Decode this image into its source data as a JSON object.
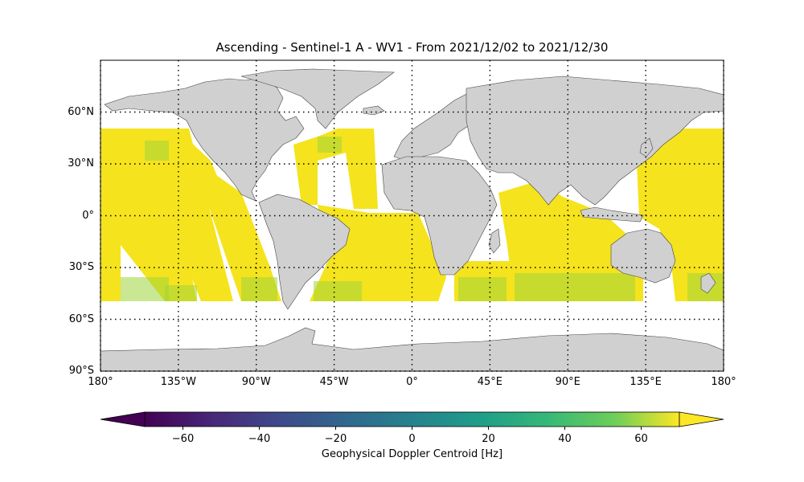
{
  "title": "Ascending - Sentinel-1 A - WV1 - From 2021/12/02 to 2021/12/30",
  "map": {
    "lat_ticks": [
      {
        "value": 60,
        "label": "60°N"
      },
      {
        "value": 30,
        "label": "30°N"
      },
      {
        "value": 0,
        "label": "0°"
      },
      {
        "value": -30,
        "label": "30°S"
      },
      {
        "value": -60,
        "label": "60°S"
      },
      {
        "value": -90,
        "label": "90°S"
      }
    ],
    "lon_ticks": [
      {
        "value": -180,
        "label": "180°"
      },
      {
        "value": -135,
        "label": "135°W"
      },
      {
        "value": -90,
        "label": "90°W"
      },
      {
        "value": -45,
        "label": "45°W"
      },
      {
        "value": 0,
        "label": "0°"
      },
      {
        "value": 45,
        "label": "45°E"
      },
      {
        "value": 90,
        "label": "90°E"
      },
      {
        "value": 135,
        "label": "135°E"
      },
      {
        "value": 180,
        "label": "180°"
      }
    ],
    "extent": {
      "lon": [
        -180,
        180
      ],
      "lat": [
        -90,
        90
      ]
    },
    "land_color": "#d0d0d0",
    "coast_color": "#444444",
    "gridlines": "dotted",
    "data_lat_range": [
      -50,
      50
    ]
  },
  "colorbar": {
    "label": "Geophysical Doppler Centroid [Hz]",
    "range": [
      -70,
      70
    ],
    "ticks": [
      {
        "value": -60,
        "label": "−60"
      },
      {
        "value": -40,
        "label": "−40"
      },
      {
        "value": -20,
        "label": "−20"
      },
      {
        "value": 0,
        "label": "0"
      },
      {
        "value": 20,
        "label": "20"
      },
      {
        "value": 40,
        "label": "40"
      },
      {
        "value": 60,
        "label": "60"
      }
    ],
    "colormap": "viridis",
    "extend": "both"
  }
}
